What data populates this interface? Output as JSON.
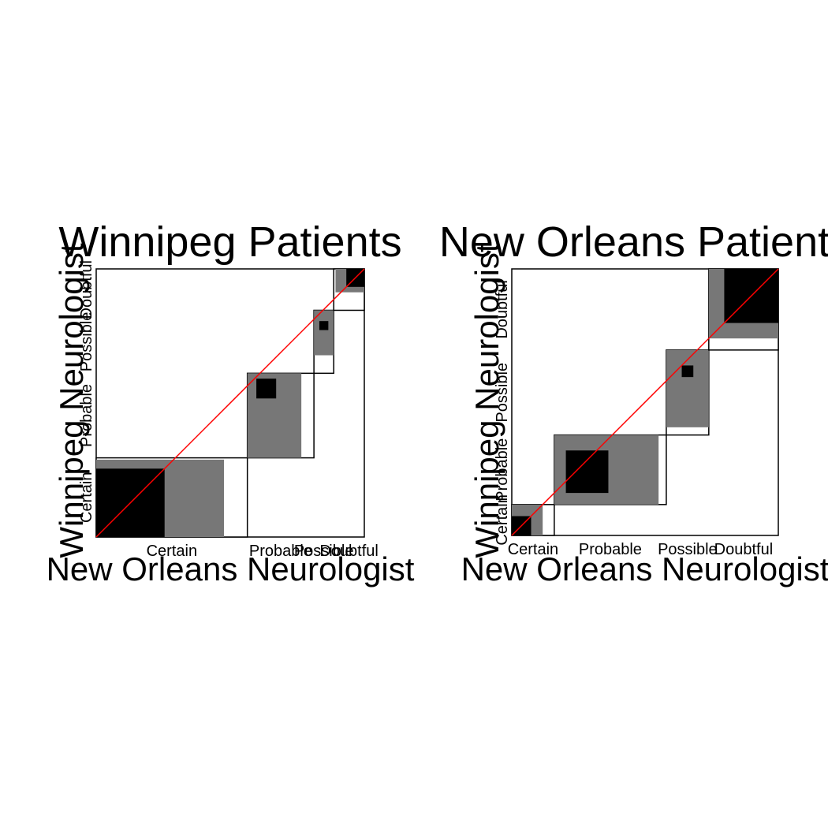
{
  "colors": {
    "background": "#ffffff",
    "marginal_frame": "#000000",
    "observed": "#777777",
    "exact_agreement": "#000000",
    "diagonal": "#ff0000"
  },
  "chart_data": [
    {
      "type": "agreement",
      "title": "Winnipeg Patients",
      "xlabel": "New Orleans Neurologist",
      "ylabel": "Winnipeg Neurologist",
      "categories": [
        "Certain",
        "Probable",
        "Possible",
        "Doubtful"
      ],
      "row_labels": [
        "Certain",
        "Probable",
        "Possible",
        "Doubtful"
      ],
      "counts": [
        [
          38,
          5,
          0,
          1
        ],
        [
          33,
          11,
          3,
          0
        ],
        [
          10,
          14,
          5,
          6
        ],
        [
          3,
          7,
          3,
          10
        ]
      ],
      "diagonal": true
    },
    {
      "type": "agreement",
      "title": "New Orleans Patients",
      "xlabel": "New Orleans Neurologist",
      "ylabel": "Winnipeg Neurologist",
      "categories": [
        "Certain",
        "Probable",
        "Possible",
        "Doubtful"
      ],
      "row_labels": [
        "Certain",
        "Probable",
        "Possible",
        "Doubtful"
      ],
      "counts": [
        [
          5,
          3,
          0,
          0
        ],
        [
          3,
          11,
          4,
          0
        ],
        [
          2,
          13,
          3,
          4
        ],
        [
          1,
          2,
          4,
          14
        ]
      ],
      "diagonal": true
    }
  ]
}
